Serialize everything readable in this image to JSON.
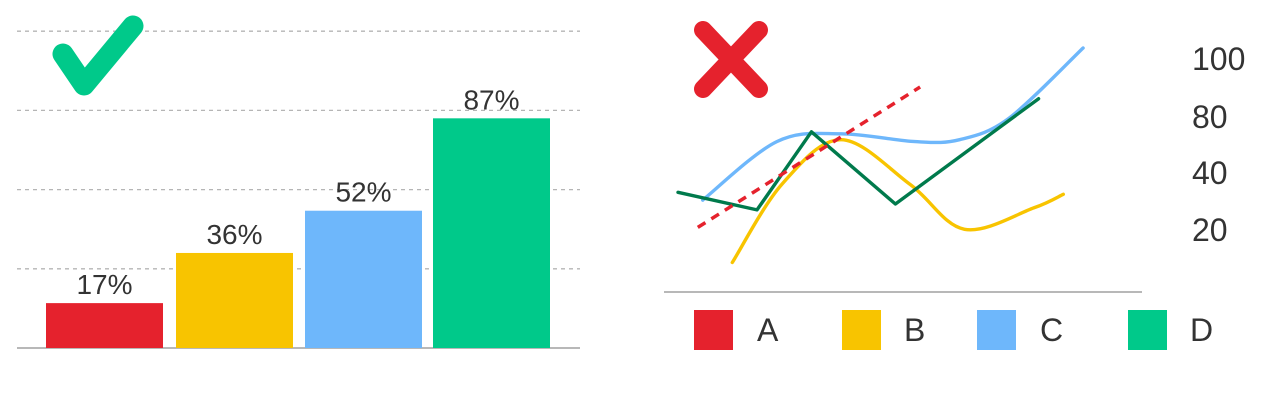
{
  "good_chart": {
    "verdict_icon": "check-mark-icon",
    "verdict_color": "#00c98a",
    "chart_data": {
      "type": "bar",
      "categories": [
        "A",
        "B",
        "C",
        "D"
      ],
      "values": [
        17,
        36,
        52,
        87
      ],
      "value_labels": [
        "17%",
        "36%",
        "52%",
        "87%"
      ],
      "colors": [
        "#e5222d",
        "#f8c400",
        "#6eb7fb",
        "#00c98a"
      ],
      "ylim": [
        0,
        100
      ],
      "grid": true,
      "title": "",
      "xlabel": "",
      "ylabel": ""
    }
  },
  "bad_chart": {
    "verdict_icon": "cross-mark-icon",
    "verdict_color": "#e5222d",
    "chart_data": {
      "type": "line",
      "y_ticks": [
        "100",
        "80",
        "40",
        "20"
      ],
      "legend_placement": "bottom",
      "grid": false,
      "series": [
        {
          "name": "A",
          "color": "#e5222d",
          "style": "dashed",
          "points": [
            [
              0.04,
              28
            ],
            [
              0.49,
              100
            ]
          ]
        },
        {
          "name": "B",
          "color": "#f8c400",
          "style": "smooth",
          "points": [
            [
              0.11,
              10
            ],
            [
              0.21,
              50
            ],
            [
              0.33,
              73
            ],
            [
              0.47,
              50
            ],
            [
              0.58,
              27
            ],
            [
              0.72,
              38
            ],
            [
              0.78,
              45
            ]
          ]
        },
        {
          "name": "C",
          "color": "#6eb7fb",
          "style": "smooth",
          "points": [
            [
              0.05,
              42
            ],
            [
              0.2,
              72
            ],
            [
              0.33,
              76
            ],
            [
              0.48,
              72
            ],
            [
              0.57,
              73
            ],
            [
              0.67,
              84
            ],
            [
              0.82,
              120
            ]
          ]
        },
        {
          "name": "D",
          "color": "#007a4c",
          "style": "straight",
          "points": [
            [
              0.0,
              46
            ],
            [
              0.16,
              37
            ],
            [
              0.27,
              77
            ],
            [
              0.44,
              40
            ],
            [
              0.73,
              94
            ]
          ]
        }
      ]
    }
  }
}
